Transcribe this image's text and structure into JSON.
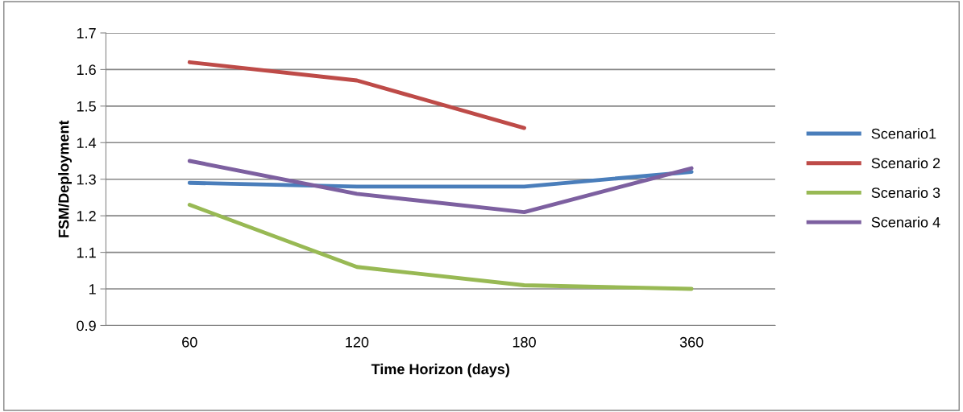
{
  "chart_data": {
    "type": "line",
    "xlabel": "Time Horizon (days)",
    "ylabel": "FSM/Deployment",
    "categories": [
      "60",
      "120",
      "180",
      "360"
    ],
    "series": [
      {
        "name": "Scenario1",
        "color": "#4a7ebb",
        "values": [
          1.29,
          1.28,
          1.28,
          1.32
        ]
      },
      {
        "name": "Scenario 2",
        "color": "#be4b48",
        "values": [
          1.62,
          1.57,
          1.44,
          null
        ]
      },
      {
        "name": "Scenario 3",
        "color": "#98b954",
        "values": [
          1.23,
          1.06,
          1.01,
          1.0
        ]
      },
      {
        "name": "Scenario 4",
        "color": "#7d60a0",
        "values": [
          1.35,
          1.26,
          1.21,
          1.33
        ]
      }
    ],
    "ylim": [
      0.9,
      1.7
    ],
    "yticks": [
      0.9,
      1,
      1.1,
      1.2,
      1.3,
      1.4,
      1.5,
      1.6,
      1.7
    ],
    "grid": "y",
    "legend": "right",
    "marker": "none",
    "line_style": "solid"
  }
}
